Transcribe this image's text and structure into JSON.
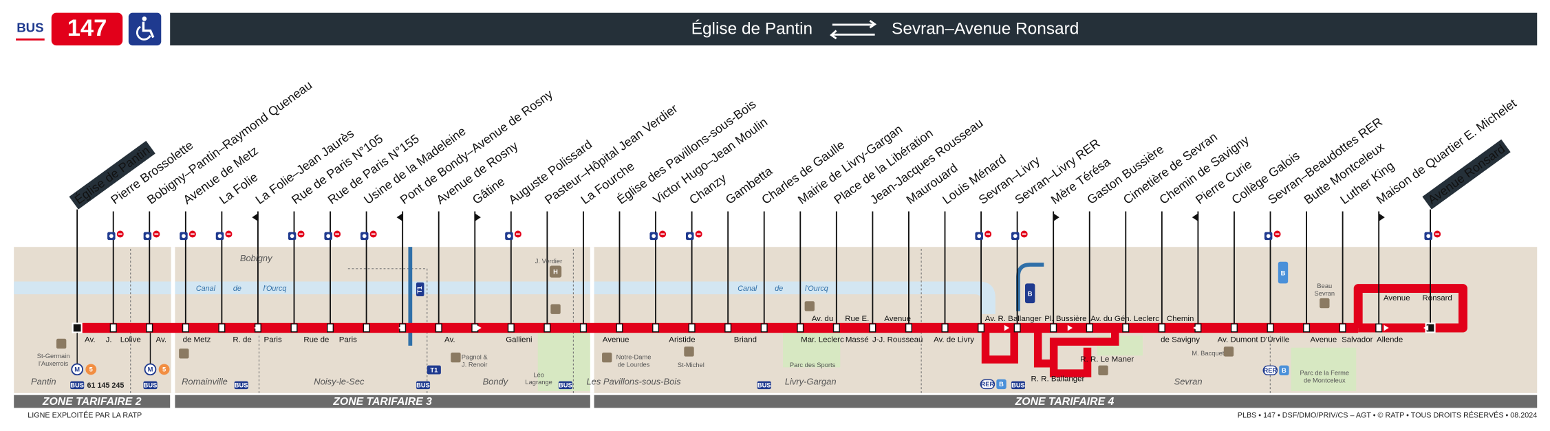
{
  "header": {
    "mode": "BUS",
    "line": "147",
    "origin": "Église de Pantin",
    "destination": "Sevran–Avenue Ronsard"
  },
  "stops": [
    "Église de Pantin",
    "Pierre Brossolette",
    "Bobigny–Pantin–Raymond Queneau",
    "Avenue de Metz",
    "La Folie",
    "La Folie–Jean Jaurès",
    "Rue de Paris N°105",
    "Rue de Paris N°155",
    "Usine de la Madeleine",
    "Pont de Bondy–Avenue de Rosny",
    "Avenue de Rosny",
    "Gâtine",
    "Auguste Polissard",
    "Pasteur–Hôpital Jean Verdier",
    "La Fourche",
    "Église des Pavillons-sous-Bois",
    "Victor Hugo–Jean Moulin",
    "Chanzy",
    "Gambetta",
    "Charles de Gaulle",
    "Mairie de Livry-Gargan",
    "Place de la Libération",
    "Jean-Jacques Rousseau",
    "Maurouard",
    "Louis Ménard",
    "Sevran–Livry",
    "Sevran–Livry RER",
    "Mère Térésa",
    "Gaston Bussière",
    "Cimetière de Sevran",
    "Chemin de Savigny",
    "Pierre Curie",
    "Collège Galois",
    "Sevran–Beaudottes RER",
    "Butte Montceleux",
    "Luther King",
    "Maison de Quartier E. Michelet",
    "Avenue Ronsard"
  ],
  "streets": [
    "Av.",
    "J.",
    "Lolive",
    "Av.",
    "de Metz",
    "R. de",
    "Paris",
    "Rue de",
    "Paris",
    "Av.",
    "Gallieni",
    "Avenue",
    "Aristide",
    "Briand",
    "Av. du",
    "Mar. Leclerc",
    "Rue E.",
    "Massé",
    "Avenue",
    "J-J. Rousseau",
    "Av. de Livry",
    "Av. R. Ballanger",
    "Pl. Bussière",
    "Av. du Gén. Leclerc",
    "Chemin",
    "de Savigny",
    "Av. Dumont D'Urville",
    "Avenue",
    "Salvador",
    "Allende",
    "Avenue",
    "Ronsard",
    "R. R. Ballanger",
    "R. R. Le Maner"
  ],
  "towns": [
    "Pantin",
    "Romainville",
    "Noisy-le-Sec",
    "Bondy",
    "Les Pavillons-sous-Bois",
    "Livry-Gargan",
    "Sevran",
    "Bobigny"
  ],
  "canal": [
    "Canal",
    "de",
    "l'Ourcq",
    "Canal",
    "de",
    "l'Ourcq"
  ],
  "places": [
    [
      "St-Germain",
      "l'Auxerrois"
    ],
    [
      "J. Verdier"
    ],
    [
      "Pagnol &",
      "J. Renoir"
    ],
    [
      "Notre-Dame",
      "de Lourdes"
    ],
    [
      "St-Michel"
    ],
    [
      "Léo",
      "Lagrange"
    ],
    [
      "Parc des Sports"
    ],
    [
      "M. Bacquet"
    ],
    [
      "Beau",
      "Sevran"
    ],
    [
      "Parc de la Ferme",
      "de Montceleux"
    ]
  ],
  "icons": {
    "metro": "M",
    "metro_line": "5",
    "bus": "BUS",
    "bus_lines": "61 145 245",
    "tram": "T1",
    "rer": "RER",
    "rer_line": "B",
    "hospital": "H"
  },
  "zones": [
    "ZONE TARIFAIRE 2",
    "ZONE TARIFAIRE 3",
    "ZONE TARIFAIRE 4"
  ],
  "footer": {
    "operator": "LIGNE EXPLOITÉE PAR LA RATP",
    "credits": "PLBS • 147 • DSF/DMO/PRIV/CS – AGT • © RATP • TOUS DROITS RÉSERVÉS • 08.2024"
  }
}
